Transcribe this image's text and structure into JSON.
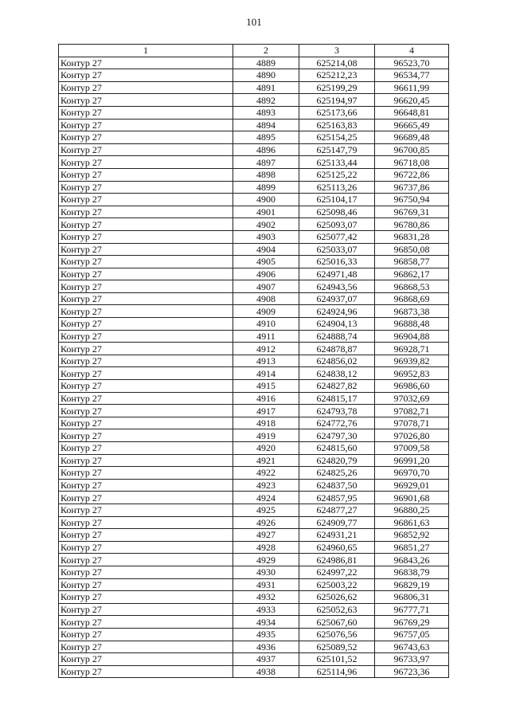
{
  "page_number": "101",
  "table": {
    "headers": [
      "1",
      "2",
      "3",
      "4"
    ],
    "rows": [
      [
        "Контур 27",
        "4889",
        "625214,08",
        "96523,70"
      ],
      [
        "Контур 27",
        "4890",
        "625212,23",
        "96534,77"
      ],
      [
        "Контур 27",
        "4891",
        "625199,29",
        "96611,99"
      ],
      [
        "Контур 27",
        "4892",
        "625194,97",
        "96620,45"
      ],
      [
        "Контур 27",
        "4893",
        "625173,66",
        "96648,81"
      ],
      [
        "Контур 27",
        "4894",
        "625163,83",
        "96665,49"
      ],
      [
        "Контур 27",
        "4895",
        "625154,25",
        "96689,48"
      ],
      [
        "Контур 27",
        "4896",
        "625147,79",
        "96700,85"
      ],
      [
        "Контур 27",
        "4897",
        "625133,44",
        "96718,08"
      ],
      [
        "Контур 27",
        "4898",
        "625125,22",
        "96722,86"
      ],
      [
        "Контур 27",
        "4899",
        "625113,26",
        "96737,86"
      ],
      [
        "Контур 27",
        "4900",
        "625104,17",
        "96750,94"
      ],
      [
        "Контур 27",
        "4901",
        "625098,46",
        "96769,31"
      ],
      [
        "Контур 27",
        "4902",
        "625093,07",
        "96780,86"
      ],
      [
        "Контур 27",
        "4903",
        "625077,42",
        "96831,28"
      ],
      [
        "Контур 27",
        "4904",
        "625033,07",
        "96850,08"
      ],
      [
        "Контур 27",
        "4905",
        "625016,33",
        "96858,77"
      ],
      [
        "Контур 27",
        "4906",
        "624971,48",
        "96862,17"
      ],
      [
        "Контур 27",
        "4907",
        "624943,56",
        "96868,53"
      ],
      [
        "Контур 27",
        "4908",
        "624937,07",
        "96868,69"
      ],
      [
        "Контур 27",
        "4909",
        "624924,96",
        "96873,38"
      ],
      [
        "Контур 27",
        "4910",
        "624904,13",
        "96888,48"
      ],
      [
        "Контур 27",
        "4911",
        "624888,74",
        "96904,88"
      ],
      [
        "Контур 27",
        "4912",
        "624878,87",
        "96928,71"
      ],
      [
        "Контур 27",
        "4913",
        "624856,02",
        "96939,82"
      ],
      [
        "Контур 27",
        "4914",
        "624838,12",
        "96952,83"
      ],
      [
        "Контур 27",
        "4915",
        "624827,82",
        "96986,60"
      ],
      [
        "Контур 27",
        "4916",
        "624815,17",
        "97032,69"
      ],
      [
        "Контур 27",
        "4917",
        "624793,78",
        "97082,71"
      ],
      [
        "Контур 27",
        "4918",
        "624772,76",
        "97078,71"
      ],
      [
        "Контур 27",
        "4919",
        "624797,30",
        "97026,80"
      ],
      [
        "Контур 27",
        "4920",
        "624815,60",
        "97009,58"
      ],
      [
        "Контур 27",
        "4921",
        "624820,79",
        "96991,20"
      ],
      [
        "Контур 27",
        "4922",
        "624825,26",
        "96970,70"
      ],
      [
        "Контур 27",
        "4923",
        "624837,50",
        "96929,01"
      ],
      [
        "Контур 27",
        "4924",
        "624857,95",
        "96901,68"
      ],
      [
        "Контур 27",
        "4925",
        "624877,27",
        "96880,25"
      ],
      [
        "Контур 27",
        "4926",
        "624909,77",
        "96861,63"
      ],
      [
        "Контур 27",
        "4927",
        "624931,21",
        "96852,92"
      ],
      [
        "Контур 27",
        "4928",
        "624960,65",
        "96851,27"
      ],
      [
        "Контур 27",
        "4929",
        "624986,81",
        "96843,26"
      ],
      [
        "Контур 27",
        "4930",
        "624997,22",
        "96838,79"
      ],
      [
        "Контур 27",
        "4931",
        "625003,22",
        "96829,19"
      ],
      [
        "Контур 27",
        "4932",
        "625026,62",
        "96806,31"
      ],
      [
        "Контур 27",
        "4933",
        "625052,63",
        "96777,71"
      ],
      [
        "Контур 27",
        "4934",
        "625067,60",
        "96769,29"
      ],
      [
        "Контур 27",
        "4935",
        "625076,56",
        "96757,05"
      ],
      [
        "Контур 27",
        "4936",
        "625089,52",
        "96743,63"
      ],
      [
        "Контур 27",
        "4937",
        "625101,52",
        "96733,97"
      ],
      [
        "Контур 27",
        "4938",
        "625114,96",
        "96723,36"
      ]
    ]
  }
}
